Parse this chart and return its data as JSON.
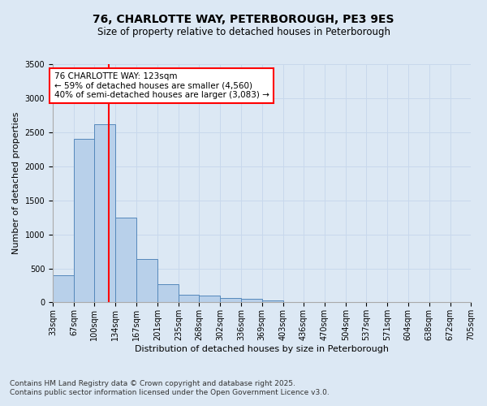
{
  "title_line1": "76, CHARLOTTE WAY, PETERBOROUGH, PE3 9ES",
  "title_line2": "Size of property relative to detached houses in Peterborough",
  "xlabel": "Distribution of detached houses by size in Peterborough",
  "ylabel": "Number of detached properties",
  "footnote_line1": "Contains HM Land Registry data © Crown copyright and database right 2025.",
  "footnote_line2": "Contains public sector information licensed under the Open Government Licence v3.0.",
  "annotation_line1": "76 CHARLOTTE WAY: 123sqm",
  "annotation_line2": "← 59% of detached houses are smaller (4,560)",
  "annotation_line3": "40% of semi-detached houses are larger (3,083) →",
  "property_size": 123,
  "bin_edges": [
    33,
    67,
    100,
    134,
    167,
    201,
    235,
    268,
    302,
    336,
    369,
    403,
    436,
    470,
    504,
    537,
    571,
    604,
    638,
    672,
    705
  ],
  "bar_heights": [
    400,
    2400,
    2620,
    1250,
    640,
    270,
    115,
    100,
    60,
    50,
    30,
    0,
    0,
    0,
    0,
    0,
    0,
    0,
    0,
    0
  ],
  "bar_color": "#b8d0ea",
  "bar_edge_color": "#5588bb",
  "red_line_x": 123,
  "ylim": [
    0,
    3500
  ],
  "yticks": [
    0,
    500,
    1000,
    1500,
    2000,
    2500,
    3000,
    3500
  ],
  "xtick_labels": [
    "33sqm",
    "67sqm",
    "100sqm",
    "134sqm",
    "167sqm",
    "201sqm",
    "235sqm",
    "268sqm",
    "302sqm",
    "336sqm",
    "369sqm",
    "403sqm",
    "436sqm",
    "470sqm",
    "504sqm",
    "537sqm",
    "571sqm",
    "604sqm",
    "638sqm",
    "672sqm",
    "705sqm"
  ],
  "grid_color": "#c8d8ec",
  "background_color": "#dce8f4",
  "annotation_box_edge_color": "red",
  "annotation_box_face_color": "white",
  "title_fontsize": 10,
  "subtitle_fontsize": 8.5,
  "axis_label_fontsize": 8,
  "tick_fontsize": 7,
  "annotation_fontsize": 7.5,
  "footnote_fontsize": 6.5
}
